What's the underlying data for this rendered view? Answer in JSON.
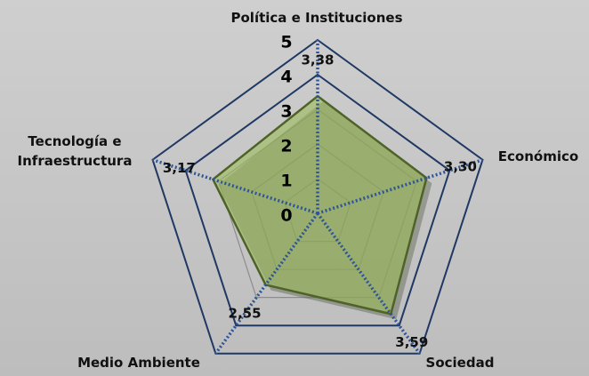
{
  "chart_data": {
    "type": "radar",
    "categories": [
      "Política e Instituciones",
      "Económico",
      "Sociedad",
      "Medio Ambiente",
      "Tecnología e Infraestructura"
    ],
    "series": [
      {
        "name": null,
        "color": "#9bbb59",
        "values": [
          3.38,
          3.3,
          3.59,
          2.55,
          3.17
        ],
        "value_labels": [
          "3,38",
          "3,30",
          "3,59",
          "2,55",
          "3,17"
        ]
      }
    ],
    "ylim": [
      0,
      5
    ],
    "yticks": [
      0,
      1,
      2,
      3,
      4,
      5
    ],
    "grid": true
  }
}
